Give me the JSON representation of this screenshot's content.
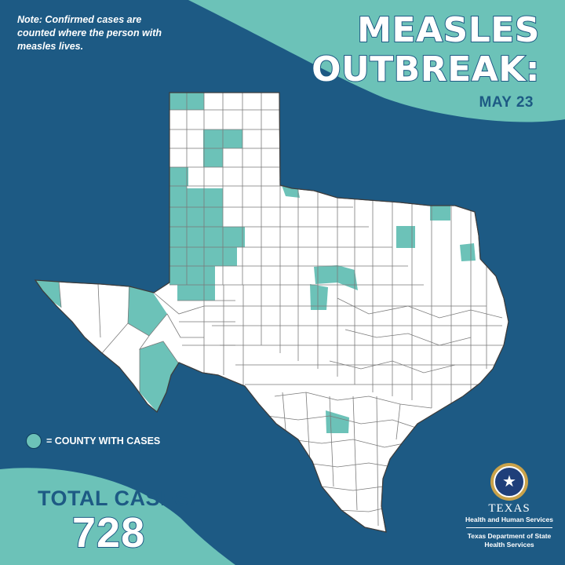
{
  "note": "Note: Confirmed cases are counted where the person with measles lives.",
  "title": {
    "line1": "MEASLES",
    "line2": "OUTBREAK:"
  },
  "date": "MAY 23",
  "legend": {
    "label": "= COUNTY WITH CASES"
  },
  "total": {
    "label": "TOTAL CASES:",
    "value": "728"
  },
  "logo": {
    "agency_name": "TEXAS",
    "agency_sub": "Health and Human Services",
    "department": "Texas Department of State Health Services"
  },
  "map": {
    "region": "Texas",
    "affected_county_count": 30
  },
  "colors": {
    "background": "#1d5a84",
    "accent_band": "#6cc2b8",
    "county_fill": "#ffffff",
    "case_fill": "#6cc2b8",
    "county_border": "#6e6e6e"
  },
  "icons": {
    "legend": "teal-circle-icon",
    "logo": "texas-star-seal-icon"
  }
}
